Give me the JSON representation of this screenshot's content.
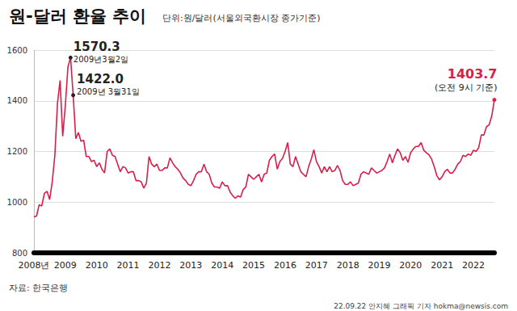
{
  "chart_data": {
    "type": "line",
    "title": "원-달러 환율 추이",
    "subtitle": "단위:원/달러(서울외국환시장 종가기준)",
    "source": "자료: 한국은행",
    "credit": "22.09.22 안지혜 그래픽 기자 hokma@newsis.com",
    "categories": [
      "2008년",
      null,
      null,
      null,
      null,
      null,
      null,
      null,
      null,
      null,
      null,
      null,
      "2009",
      null,
      null,
      null,
      null,
      null,
      null,
      null,
      null,
      null,
      null,
      null,
      "2010",
      null,
      null,
      null,
      null,
      null,
      null,
      null,
      null,
      null,
      null,
      null,
      "2011",
      null,
      null,
      null,
      null,
      null,
      null,
      null,
      null,
      null,
      null,
      null,
      "2012",
      null,
      null,
      null,
      null,
      null,
      null,
      null,
      null,
      null,
      null,
      null,
      "2013",
      null,
      null,
      null,
      null,
      null,
      null,
      null,
      null,
      null,
      null,
      null,
      "2014",
      null,
      null,
      null,
      null,
      null,
      null,
      null,
      null,
      null,
      null,
      null,
      "2015",
      null,
      null,
      null,
      null,
      null,
      null,
      null,
      null,
      null,
      null,
      null,
      "2016",
      null,
      null,
      null,
      null,
      null,
      null,
      null,
      null,
      null,
      null,
      null,
      "2017",
      null,
      null,
      null,
      null,
      null,
      null,
      null,
      null,
      null,
      null,
      null,
      "2018",
      null,
      null,
      null,
      null,
      null,
      null,
      null,
      null,
      null,
      null,
      null,
      "2019",
      null,
      null,
      null,
      null,
      null,
      null,
      null,
      null,
      null,
      null,
      null,
      "2020",
      null,
      null,
      null,
      null,
      null,
      null,
      null,
      null,
      null,
      null,
      null,
      "2021",
      null,
      null,
      null,
      null,
      null,
      null,
      null,
      null,
      null,
      null,
      null,
      "2022",
      null,
      null,
      null,
      null,
      null,
      null,
      null,
      null
    ],
    "values": [
      942,
      945,
      990,
      985,
      1035,
      1043,
      1010,
      1080,
      1185,
      1390,
      1480,
      1260,
      1380,
      1534,
      1570.3,
      1422.0,
      1250,
      1275,
      1240,
      1245,
      1180,
      1180,
      1160,
      1165,
      1140,
      1155,
      1130,
      1115,
      1200,
      1210,
      1185,
      1180,
      1150,
      1120,
      1140,
      1135,
      1115,
      1120,
      1120,
      1085,
      1085,
      1080,
      1055,
      1075,
      1180,
      1150,
      1140,
      1150,
      1125,
      1125,
      1135,
      1135,
      1175,
      1155,
      1140,
      1130,
      1115,
      1095,
      1085,
      1070,
      1065,
      1085,
      1110,
      1120,
      1120,
      1150,
      1120,
      1110,
      1075,
      1060,
      1060,
      1055,
      1080,
      1065,
      1065,
      1040,
      1025,
      1015,
      1025,
      1020,
      1050,
      1060,
      1110,
      1100,
      1090,
      1100,
      1110,
      1080,
      1110,
      1115,
      1165,
      1180,
      1190,
      1130,
      1160,
      1172,
      1200,
      1235,
      1150,
      1140,
      1180,
      1150,
      1120,
      1110,
      1100,
      1140,
      1170,
      1207,
      1160,
      1140,
      1115,
      1140,
      1120,
      1140,
      1120,
      1125,
      1145,
      1125,
      1085,
      1070,
      1070,
      1080,
      1065,
      1070,
      1075,
      1110,
      1120,
      1115,
      1110,
      1135,
      1125,
      1115,
      1120,
      1125,
      1135,
      1160,
      1190,
      1155,
      1185,
      1210,
      1195,
      1165,
      1180,
      1157,
      1195,
      1210,
      1220,
      1220,
      1235,
      1205,
      1195,
      1187,
      1170,
      1140,
      1105,
      1088,
      1100,
      1120,
      1130,
      1115,
      1115,
      1130,
      1150,
      1160,
      1185,
      1180,
      1190,
      1185,
      1205,
      1200,
      1215,
      1265,
      1265,
      1298,
      1305,
      1340,
      1403.7
    ],
    "color": "#d81e4a",
    "ylim": [
      800,
      1600
    ],
    "yticks": [
      800,
      1000,
      1200,
      1400,
      1600
    ],
    "grid": true,
    "annotations": [
      {
        "value": 1570.3,
        "label": "1570.3",
        "note": "2009년3월2일",
        "color": "#222222"
      },
      {
        "value": 1422.0,
        "label": "1422.0",
        "note": "2009년 3월31일",
        "color": "#222222"
      },
      {
        "value": 1403.7,
        "label": "1403.7",
        "note": "(오전 9시 기준)",
        "color": "#d81e4a"
      }
    ]
  }
}
